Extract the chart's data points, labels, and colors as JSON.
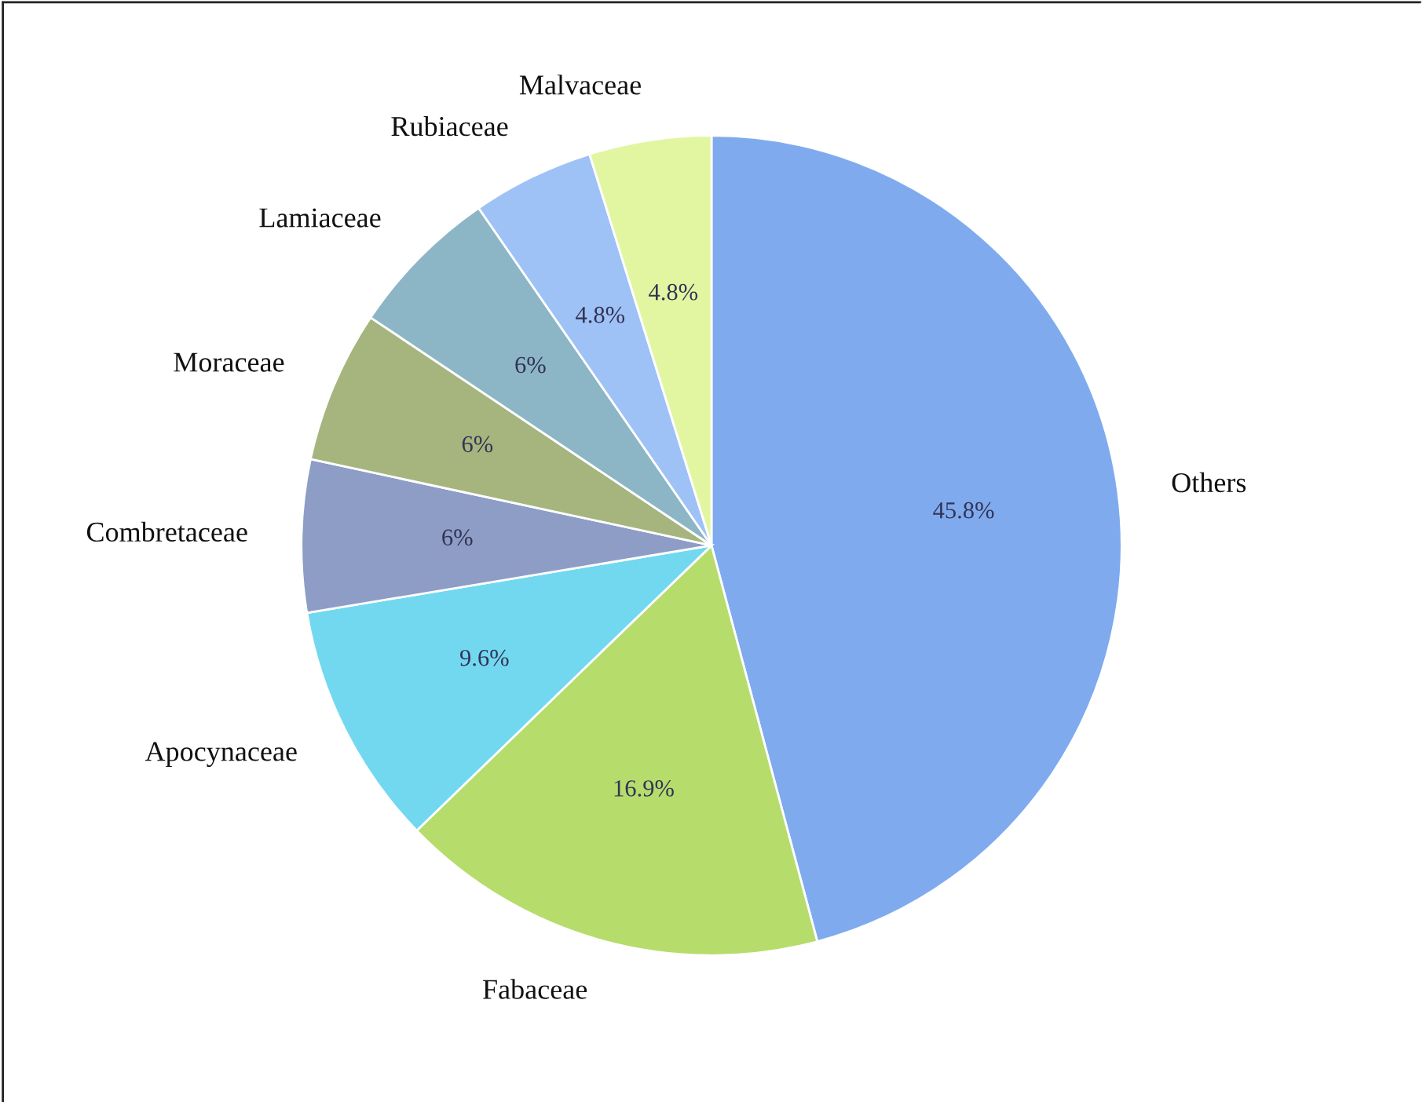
{
  "chart_data": {
    "type": "pie",
    "categories": [
      "Others",
      "Fabaceae",
      "Apocynaceae",
      "Combretaceae",
      "Moraceae",
      "Lamiaceae",
      "Rubiaceae",
      "Malvaceae"
    ],
    "values": [
      45.8,
      16.9,
      9.6,
      6,
      6,
      6,
      4.8,
      4.8
    ],
    "value_labels": [
      "45.8%",
      "16.9%",
      "9.6%",
      "6%",
      "6%",
      "6%",
      "4.8%",
      "4.8%"
    ],
    "colors": [
      "#7fabee",
      "#b6dc6c",
      "#72d8f0",
      "#8d9dc6",
      "#a6b57e",
      "#8cb6c6",
      "#9ec2f6",
      "#e2f6a2"
    ],
    "legend": false
  }
}
